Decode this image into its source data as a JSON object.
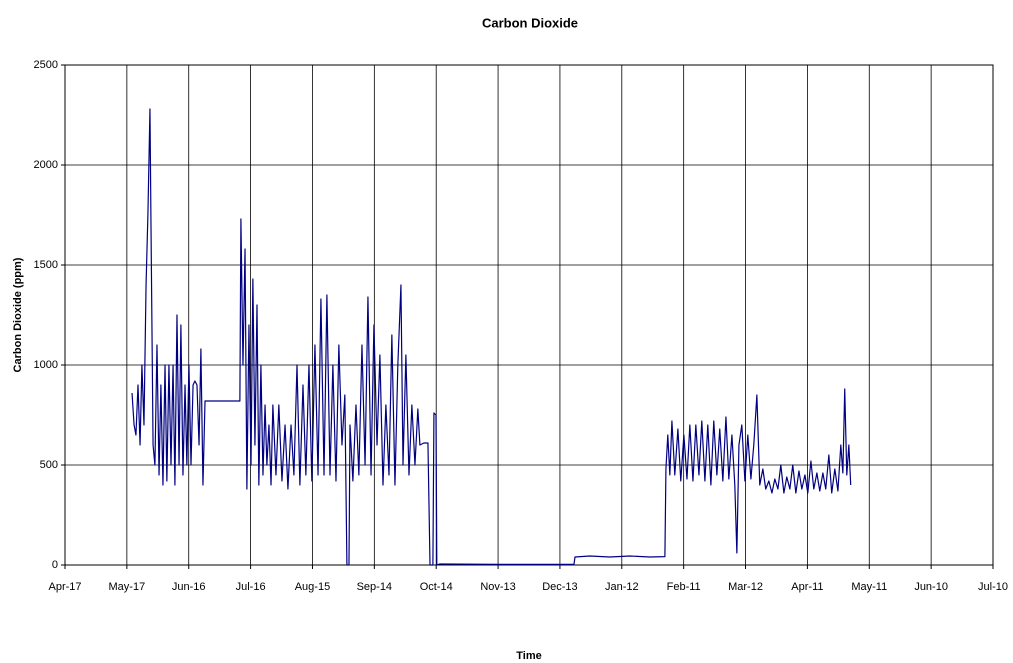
{
  "chart_data": {
    "type": "line",
    "title": "Carbon Dioxide",
    "x_label": "Time",
    "y_label": "Carbon Dioxide (ppm)",
    "xlim": [
      0,
      450
    ],
    "ylim": [
      0,
      2500
    ],
    "grid": true,
    "xticks": [
      {
        "value": 0,
        "label": "Apr-17"
      },
      {
        "value": 30,
        "label": "May-17"
      },
      {
        "value": 60,
        "label": "Jun-16"
      },
      {
        "value": 90,
        "label": "Jul-16"
      },
      {
        "value": 120,
        "label": "Aug-15"
      },
      {
        "value": 150,
        "label": "Sep-14"
      },
      {
        "value": 180,
        "label": "Oct-14"
      },
      {
        "value": 210,
        "label": "Nov-13"
      },
      {
        "value": 240,
        "label": "Dec-13"
      },
      {
        "value": 270,
        "label": "Jan-12"
      },
      {
        "value": 300,
        "label": "Feb-11"
      },
      {
        "value": 330,
        "label": "Mar-12"
      },
      {
        "value": 360,
        "label": "Apr-11"
      },
      {
        "value": 390,
        "label": "May-11"
      },
      {
        "value": 420,
        "label": "Jun-10"
      },
      {
        "value": 450,
        "label": "Jul-10"
      }
    ],
    "yticks": [
      0,
      500,
      1000,
      1500,
      2000,
      2500
    ],
    "series": [
      {
        "name": "Carbon Dioxide",
        "color": "#000080",
        "x": [
          32.5,
          33.5,
          34.4,
          35.4,
          36.4,
          37.3,
          38.3,
          39.3,
          40.2,
          41.2,
          41.7,
          42.7,
          43.6,
          44.6,
          45.6,
          46.5,
          47.5,
          48.5,
          49.4,
          50.4,
          51.4,
          52.4,
          53.3,
          54.3,
          55.3,
          56.2,
          57.2,
          58.2,
          59.1,
          60.1,
          61.1,
          62.1,
          63,
          64,
          65,
          65.9,
          66.9,
          67.9,
          84.8,
          85.3,
          86.3,
          87.3,
          88.2,
          89.2,
          90.2,
          91.1,
          92.1,
          93.1,
          94,
          95,
          96,
          97,
          97.9,
          98.9,
          99.9,
          100.8,
          102.3,
          103.7,
          105.2,
          106.7,
          108.1,
          109.6,
          111,
          112.5,
          113.9,
          115.4,
          116.8,
          118.3,
          119.7,
          121.2,
          122.7,
          124.1,
          125.6,
          127,
          128.5,
          129.9,
          131.4,
          132.8,
          134.3,
          135.7,
          136.7,
          137.7,
          138.2,
          139.6,
          141.1,
          142.5,
          144,
          145.5,
          146.9,
          148.4,
          149.8,
          151.3,
          152.7,
          154.2,
          155.6,
          157.1,
          158.5,
          160,
          161.4,
          162.9,
          163.9,
          165.3,
          166.8,
          168.2,
          169.7,
          171.1,
          172.1,
          174,
          176,
          177,
          178.4,
          178.9,
          179.9,
          180.3,
          181.8,
          210.9,
          240,
          246.8,
          247.3,
          254.5,
          264.2,
          273.9,
          283.6,
          290.9,
          291.4,
          292.3,
          293.3,
          294.3,
          295.7,
          297.2,
          298.6,
          300.1,
          301.6,
          303,
          304.5,
          305.9,
          307.4,
          308.8,
          310.3,
          311.7,
          313.2,
          314.6,
          316.1,
          317.5,
          319,
          320.5,
          321.9,
          323.4,
          324.8,
          325.8,
          326.8,
          328.2,
          329.7,
          331.1,
          332.6,
          334,
          335.5,
          336.9,
          338.4,
          339.8,
          341.3,
          342.8,
          344.2,
          345.7,
          347.1,
          348.6,
          350,
          351.5,
          352.9,
          354.4,
          355.9,
          357.3,
          358.8,
          360.2,
          361.7,
          363.1,
          364.6,
          366,
          367.5,
          368.9,
          370.4,
          371.8,
          373.3,
          374.8,
          376.2,
          377.2,
          378.1,
          379.1,
          380.1,
          381
        ],
        "values": [
          860,
          700,
          650,
          900,
          600,
          1000,
          700,
          1400,
          1750,
          2280,
          1700,
          600,
          500,
          1100,
          450,
          900,
          400,
          1000,
          420,
          1000,
          500,
          1000,
          400,
          1250,
          500,
          1200,
          450,
          900,
          500,
          1000,
          500,
          900,
          920,
          900,
          600,
          1080,
          400,
          820,
          820,
          1730,
          1000,
          1580,
          380,
          1200,
          500,
          1430,
          600,
          1300,
          400,
          1000,
          450,
          800,
          500,
          700,
          400,
          800,
          450,
          800,
          420,
          700,
          380,
          700,
          450,
          1000,
          400,
          900,
          450,
          1000,
          420,
          1100,
          450,
          1330,
          450,
          1350,
          450,
          1000,
          420,
          1100,
          600,
          850,
          0,
          0,
          700,
          420,
          800,
          450,
          1100,
          500,
          1340,
          450,
          1200,
          600,
          1050,
          400,
          800,
          450,
          1150,
          400,
          1000,
          1400,
          500,
          1050,
          450,
          800,
          500,
          780,
          600,
          610,
          610,
          0,
          0,
          760,
          750,
          0,
          5,
          3,
          3,
          3,
          40,
          45,
          40,
          45,
          40,
          42,
          480,
          650,
          450,
          720,
          450,
          680,
          420,
          650,
          430,
          700,
          420,
          700,
          450,
          720,
          420,
          700,
          400,
          720,
          450,
          680,
          420,
          740,
          430,
          650,
          400,
          60,
          600,
          700,
          420,
          650,
          430,
          600,
          850,
          400,
          480,
          380,
          420,
          360,
          430,
          380,
          500,
          360,
          440,
          380,
          500,
          360,
          470,
          380,
          450,
          360,
          520,
          380,
          460,
          370,
          460,
          380,
          550,
          360,
          480,
          370,
          600,
          460,
          880,
          450,
          600,
          400
        ]
      }
    ]
  }
}
